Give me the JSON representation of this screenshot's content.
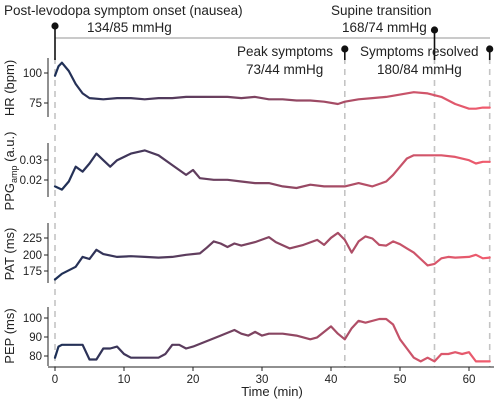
{
  "chart_data": {
    "type": "line",
    "x_label": "Time (min)",
    "x_range": [
      -1,
      63.5
    ],
    "x_ticks": [
      "0",
      "10",
      "20",
      "30",
      "40",
      "50",
      "60"
    ],
    "line_color_start": "#1c2f56",
    "line_color_end": "#f25c6e",
    "grid": false,
    "event_lines": [
      {
        "time": 0,
        "label": "Post-levodopa symptom onset (nausea)",
        "bp": "134/85 mmHg"
      },
      {
        "time": 42,
        "label": "Peak symptoms",
        "bp": "73/44 mmHg"
      },
      {
        "time": 55,
        "label": "Supine transition",
        "bp": "168/74 mmHg"
      },
      {
        "time": 63,
        "label": "Symptoms resolved",
        "bp": "180/84 mmHg"
      }
    ],
    "panels": [
      {
        "id": "hr",
        "ylabel": "HR (bpm)",
        "y_ticks": [
          "75",
          "100"
        ],
        "y_range": [
          63,
          113
        ],
        "series": [
          {
            "x": 0,
            "y": 98
          },
          {
            "x": 0.5,
            "y": 106
          },
          {
            "x": 1,
            "y": 109
          },
          {
            "x": 2,
            "y": 102
          },
          {
            "x": 3,
            "y": 91
          },
          {
            "x": 4,
            "y": 83
          },
          {
            "x": 5,
            "y": 79
          },
          {
            "x": 7,
            "y": 78
          },
          {
            "x": 9,
            "y": 79
          },
          {
            "x": 11,
            "y": 79
          },
          {
            "x": 13,
            "y": 78
          },
          {
            "x": 15,
            "y": 79
          },
          {
            "x": 17,
            "y": 79
          },
          {
            "x": 19,
            "y": 80
          },
          {
            "x": 21,
            "y": 80
          },
          {
            "x": 23,
            "y": 80
          },
          {
            "x": 25,
            "y": 80
          },
          {
            "x": 27,
            "y": 79
          },
          {
            "x": 29,
            "y": 80
          },
          {
            "x": 31,
            "y": 78
          },
          {
            "x": 33,
            "y": 78
          },
          {
            "x": 35,
            "y": 77
          },
          {
            "x": 37,
            "y": 77
          },
          {
            "x": 39,
            "y": 76
          },
          {
            "x": 41,
            "y": 74
          },
          {
            "x": 42,
            "y": 76
          },
          {
            "x": 44,
            "y": 78
          },
          {
            "x": 46,
            "y": 79
          },
          {
            "x": 48,
            "y": 80
          },
          {
            "x": 50,
            "y": 82
          },
          {
            "x": 52,
            "y": 84
          },
          {
            "x": 54,
            "y": 83
          },
          {
            "x": 56,
            "y": 80
          },
          {
            "x": 58,
            "y": 74
          },
          {
            "x": 60,
            "y": 70
          },
          {
            "x": 61,
            "y": 70
          },
          {
            "x": 62,
            "y": 71
          },
          {
            "x": 63,
            "y": 71
          }
        ]
      },
      {
        "id": "ppg",
        "ylabel": "PPG",
        "ylabel_subscript": "amp",
        "ylabel_suffix": " (a.u.)",
        "y_ticks": [
          "0.02",
          "0.03"
        ],
        "y_range": [
          0.0085,
          0.0415
        ],
        "series": [
          {
            "x": 0,
            "y": 0.015
          },
          {
            "x": 1,
            "y": 0.013
          },
          {
            "x": 2,
            "y": 0.018
          },
          {
            "x": 3,
            "y": 0.027
          },
          {
            "x": 4,
            "y": 0.024
          },
          {
            "x": 5,
            "y": 0.029
          },
          {
            "x": 6,
            "y": 0.035
          },
          {
            "x": 7,
            "y": 0.031
          },
          {
            "x": 8,
            "y": 0.027
          },
          {
            "x": 9,
            "y": 0.031
          },
          {
            "x": 11,
            "y": 0.035
          },
          {
            "x": 13,
            "y": 0.037
          },
          {
            "x": 15,
            "y": 0.034
          },
          {
            "x": 17,
            "y": 0.028
          },
          {
            "x": 19,
            "y": 0.022
          },
          {
            "x": 20,
            "y": 0.025
          },
          {
            "x": 21,
            "y": 0.02
          },
          {
            "x": 23,
            "y": 0.019
          },
          {
            "x": 25,
            "y": 0.019
          },
          {
            "x": 27,
            "y": 0.018
          },
          {
            "x": 29,
            "y": 0.017
          },
          {
            "x": 31,
            "y": 0.017
          },
          {
            "x": 33,
            "y": 0.015
          },
          {
            "x": 35,
            "y": 0.014
          },
          {
            "x": 37,
            "y": 0.016
          },
          {
            "x": 39,
            "y": 0.015
          },
          {
            "x": 41,
            "y": 0.015
          },
          {
            "x": 42,
            "y": 0.015
          },
          {
            "x": 44,
            "y": 0.017
          },
          {
            "x": 46,
            "y": 0.015
          },
          {
            "x": 48,
            "y": 0.018
          },
          {
            "x": 49,
            "y": 0.022
          },
          {
            "x": 50,
            "y": 0.027
          },
          {
            "x": 51,
            "y": 0.032
          },
          {
            "x": 52,
            "y": 0.034
          },
          {
            "x": 54,
            "y": 0.034
          },
          {
            "x": 56,
            "y": 0.034
          },
          {
            "x": 58,
            "y": 0.033
          },
          {
            "x": 60,
            "y": 0.031
          },
          {
            "x": 61,
            "y": 0.029
          },
          {
            "x": 62,
            "y": 0.03
          },
          {
            "x": 63,
            "y": 0.03
          }
        ]
      },
      {
        "id": "pat",
        "ylabel": "PAT (ms)",
        "y_ticks": [
          "175",
          "200",
          "225"
        ],
        "y_range": [
          163,
          248
        ],
        "series": [
          {
            "x": 0,
            "y": 168
          },
          {
            "x": 1,
            "y": 176
          },
          {
            "x": 2,
            "y": 181
          },
          {
            "x": 3,
            "y": 186
          },
          {
            "x": 4,
            "y": 200
          },
          {
            "x": 5,
            "y": 197
          },
          {
            "x": 6,
            "y": 210
          },
          {
            "x": 7,
            "y": 204
          },
          {
            "x": 9,
            "y": 200
          },
          {
            "x": 11,
            "y": 201
          },
          {
            "x": 13,
            "y": 200
          },
          {
            "x": 15,
            "y": 199
          },
          {
            "x": 17,
            "y": 200
          },
          {
            "x": 19,
            "y": 203
          },
          {
            "x": 21,
            "y": 205
          },
          {
            "x": 22,
            "y": 213
          },
          {
            "x": 23,
            "y": 222
          },
          {
            "x": 24,
            "y": 219
          },
          {
            "x": 25,
            "y": 214
          },
          {
            "x": 26,
            "y": 219
          },
          {
            "x": 27,
            "y": 216
          },
          {
            "x": 29,
            "y": 221
          },
          {
            "x": 31,
            "y": 228
          },
          {
            "x": 32,
            "y": 221
          },
          {
            "x": 34,
            "y": 212
          },
          {
            "x": 36,
            "y": 217
          },
          {
            "x": 38,
            "y": 224
          },
          {
            "x": 39,
            "y": 217
          },
          {
            "x": 40,
            "y": 227
          },
          {
            "x": 41,
            "y": 234
          },
          {
            "x": 42,
            "y": 224
          },
          {
            "x": 43,
            "y": 206
          },
          {
            "x": 44,
            "y": 222
          },
          {
            "x": 45,
            "y": 229
          },
          {
            "x": 46,
            "y": 226
          },
          {
            "x": 47,
            "y": 217
          },
          {
            "x": 48,
            "y": 216
          },
          {
            "x": 49,
            "y": 222
          },
          {
            "x": 50,
            "y": 218
          },
          {
            "x": 51,
            "y": 212
          },
          {
            "x": 52,
            "y": 206
          },
          {
            "x": 53,
            "y": 197
          },
          {
            "x": 54,
            "y": 188
          },
          {
            "x": 55,
            "y": 190
          },
          {
            "x": 56,
            "y": 198
          },
          {
            "x": 57,
            "y": 200
          },
          {
            "x": 58,
            "y": 199
          },
          {
            "x": 60,
            "y": 200
          },
          {
            "x": 61,
            "y": 203
          },
          {
            "x": 62,
            "y": 198
          },
          {
            "x": 63,
            "y": 199
          }
        ]
      },
      {
        "id": "pep",
        "ylabel": "PEP (ms)",
        "y_ticks": [
          "80",
          "90",
          "100"
        ],
        "y_range": [
          75.5,
          107.5
        ],
        "series": [
          {
            "x": 0,
            "y": 80
          },
          {
            "x": 0.5,
            "y": 86
          },
          {
            "x": 1,
            "y": 87
          },
          {
            "x": 3,
            "y": 87
          },
          {
            "x": 4,
            "y": 87
          },
          {
            "x": 5,
            "y": 79
          },
          {
            "x": 6,
            "y": 79
          },
          {
            "x": 7,
            "y": 85
          },
          {
            "x": 8,
            "y": 85
          },
          {
            "x": 9,
            "y": 86
          },
          {
            "x": 10,
            "y": 82
          },
          {
            "x": 11,
            "y": 80
          },
          {
            "x": 13,
            "y": 80
          },
          {
            "x": 15,
            "y": 80
          },
          {
            "x": 16,
            "y": 82
          },
          {
            "x": 17,
            "y": 87
          },
          {
            "x": 18,
            "y": 87
          },
          {
            "x": 19,
            "y": 85
          },
          {
            "x": 20,
            "y": 86
          },
          {
            "x": 22,
            "y": 89
          },
          {
            "x": 24,
            "y": 92
          },
          {
            "x": 26,
            "y": 95
          },
          {
            "x": 27,
            "y": 93
          },
          {
            "x": 28,
            "y": 92
          },
          {
            "x": 29,
            "y": 94
          },
          {
            "x": 30,
            "y": 92
          },
          {
            "x": 31,
            "y": 93
          },
          {
            "x": 33,
            "y": 93
          },
          {
            "x": 35,
            "y": 92
          },
          {
            "x": 37,
            "y": 90
          },
          {
            "x": 38,
            "y": 91
          },
          {
            "x": 39,
            "y": 94
          },
          {
            "x": 40,
            "y": 97
          },
          {
            "x": 41,
            "y": 93
          },
          {
            "x": 42,
            "y": 90
          },
          {
            "x": 43,
            "y": 96
          },
          {
            "x": 44,
            "y": 100
          },
          {
            "x": 45,
            "y": 99
          },
          {
            "x": 47,
            "y": 101
          },
          {
            "x": 48,
            "y": 101
          },
          {
            "x": 49,
            "y": 98
          },
          {
            "x": 50,
            "y": 90
          },
          {
            "x": 51,
            "y": 85
          },
          {
            "x": 52,
            "y": 80
          },
          {
            "x": 53,
            "y": 78
          },
          {
            "x": 54,
            "y": 80
          },
          {
            "x": 55,
            "y": 78
          },
          {
            "x": 56,
            "y": 82
          },
          {
            "x": 57,
            "y": 82
          },
          {
            "x": 58,
            "y": 83
          },
          {
            "x": 59,
            "y": 82
          },
          {
            "x": 60,
            "y": 83
          },
          {
            "x": 61,
            "y": 78
          },
          {
            "x": 63,
            "y": 78
          }
        ]
      }
    ]
  }
}
